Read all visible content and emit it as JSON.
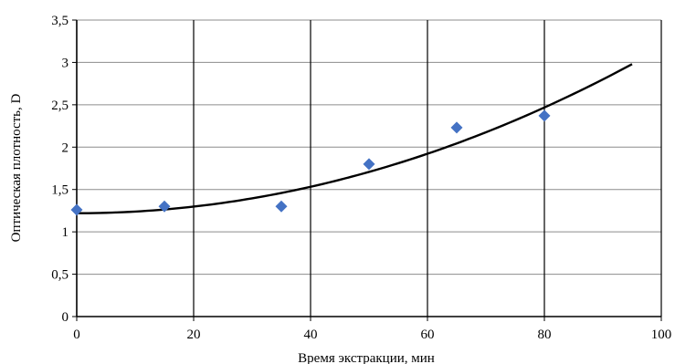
{
  "chart_data": {
    "type": "scatter",
    "xlabel": "Время экстракции, мин",
    "ylabel": "Оптическая плотность, D",
    "xlim": [
      0,
      100
    ],
    "ylim": [
      0,
      3.5
    ],
    "x_ticks": [
      "0",
      "20",
      "40",
      "60",
      "80",
      "100"
    ],
    "y_ticks": [
      "0",
      "0,5",
      "1",
      "1,5",
      "2",
      "2,5",
      "3",
      "3,5"
    ],
    "grid": "vertical and horizontal",
    "legend": "none",
    "series": [
      {
        "marker": "diamond",
        "color": "#4472C4",
        "x": [
          0,
          15,
          35,
          50,
          65,
          80
        ],
        "y": [
          1.26,
          1.3,
          1.3,
          1.8,
          2.23,
          2.37
        ]
      }
    ],
    "trendline": {
      "type": "polynomial",
      "color": "#000000",
      "x_range": [
        0,
        95
      ],
      "coefficients": [
        1.22,
        0.0,
        0.000195
      ]
    }
  }
}
